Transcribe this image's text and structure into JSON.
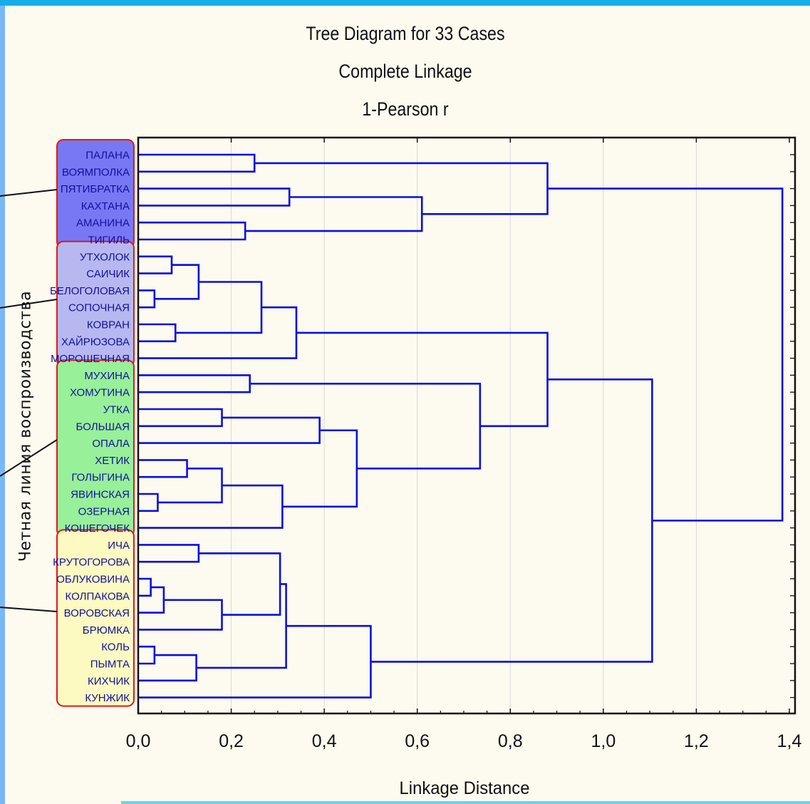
{
  "chart_data": {
    "type": "dendrogram",
    "title": "Tree Diagram for 33 Cases",
    "subtitle": "Complete Linkage",
    "metric": "1-Pearson r",
    "xlabel": "Linkage Distance",
    "side_label": "Четная линия воспроизводства",
    "xlim": [
      0,
      1.4
    ],
    "x_ticks": [
      "0,0",
      "0,2",
      "0,4",
      "0,6",
      "0,8",
      "1,0",
      "1,2",
      "1,4"
    ],
    "grid": "vertical",
    "leaves": [
      "ПАЛАНА",
      "ВОЯМПОЛКА",
      "ПЯТИБРАТКА",
      "КАХТАНА",
      "АМАНИНА",
      "ТИГИЛЬ",
      "УТХОЛОК",
      "САИЧИК",
      "БЕЛОГОЛОВАЯ",
      "СОПОЧНАЯ",
      "КОВРАН",
      "ХАЙРЮЗОВА",
      "МОРОШЕЧНАЯ",
      "МУХИНА",
      "ХОМУТИНА",
      "УТКА",
      "БОЛЬШАЯ",
      "ОПАЛА",
      "ХЕТИК",
      "ГОЛЫГИНА",
      "ЯВИНСКАЯ",
      "ОЗЕРНАЯ",
      "КОШЕГОЧЕК",
      "ИЧА",
      "КРУТОГОРОВА",
      "ОБЛУКОВИНА",
      "КОЛПАКОВА",
      "ВОРОВСКАЯ",
      "БРЮМКА",
      "КОЛЬ",
      "ПЫМТА",
      "КИХЧИК",
      "КУНЖИК"
    ],
    "merges": [
      {
        "a": "L0",
        "b": "L1",
        "h": 0.25
      },
      {
        "a": "L2",
        "b": "L3",
        "h": 0.325
      },
      {
        "a": "L4",
        "b": "L5",
        "h": 0.23
      },
      {
        "a": "M1",
        "b": "M2",
        "h": 0.61
      },
      {
        "a": "M0",
        "b": "M3",
        "h": 0.88
      },
      {
        "a": "L6",
        "b": "L7",
        "h": 0.072
      },
      {
        "a": "L8",
        "b": "L9",
        "h": 0.035
      },
      {
        "a": "M5",
        "b": "M6",
        "h": 0.13
      },
      {
        "a": "L10",
        "b": "L11",
        "h": 0.08
      },
      {
        "a": "M7",
        "b": "M8",
        "h": 0.265
      },
      {
        "a": "M9",
        "b": "L12",
        "h": 0.34
      },
      {
        "a": "L13",
        "b": "L14",
        "h": 0.24
      },
      {
        "a": "L15",
        "b": "L16",
        "h": 0.18
      },
      {
        "a": "M12",
        "b": "L17",
        "h": 0.39
      },
      {
        "a": "L18",
        "b": "L19",
        "h": 0.105
      },
      {
        "a": "L20",
        "b": "L21",
        "h": 0.042
      },
      {
        "a": "M14",
        "b": "M15",
        "h": 0.18
      },
      {
        "a": "M16",
        "b": "L22",
        "h": 0.31
      },
      {
        "a": "M13",
        "b": "M17",
        "h": 0.47
      },
      {
        "a": "M11",
        "b": "M18",
        "h": 0.735
      },
      {
        "a": "M10",
        "b": "M19",
        "h": 0.88
      },
      {
        "a": "L23",
        "b": "L24",
        "h": 0.13
      },
      {
        "a": "L25",
        "b": "L26",
        "h": 0.027
      },
      {
        "a": "M22",
        "b": "L27",
        "h": 0.055
      },
      {
        "a": "M23",
        "b": "L28",
        "h": 0.18
      },
      {
        "a": "M21",
        "b": "M24",
        "h": 0.305
      },
      {
        "a": "L29",
        "b": "L30",
        "h": 0.035
      },
      {
        "a": "M26",
        "b": "L31",
        "h": 0.125
      },
      {
        "a": "M25",
        "b": "M27",
        "h": 0.318
      },
      {
        "a": "M28",
        "b": "L32",
        "h": 0.5
      },
      {
        "a": "M20",
        "b": "M29",
        "h": 1.105
      },
      {
        "a": "M4",
        "b": "M30",
        "h": 1.385
      }
    ],
    "groups": [
      {
        "from": 0,
        "to": 5,
        "fill": "#7878f4"
      },
      {
        "from": 6,
        "to": 12,
        "fill": "#b8b8f0"
      },
      {
        "from": 13,
        "to": 22,
        "fill": "#98f098"
      },
      {
        "from": 23,
        "to": 32,
        "fill": "#fcfac0"
      }
    ],
    "colors": {
      "tree": "#0a10dc",
      "group_border": "#e01818",
      "background": "#fdfaf0"
    }
  }
}
